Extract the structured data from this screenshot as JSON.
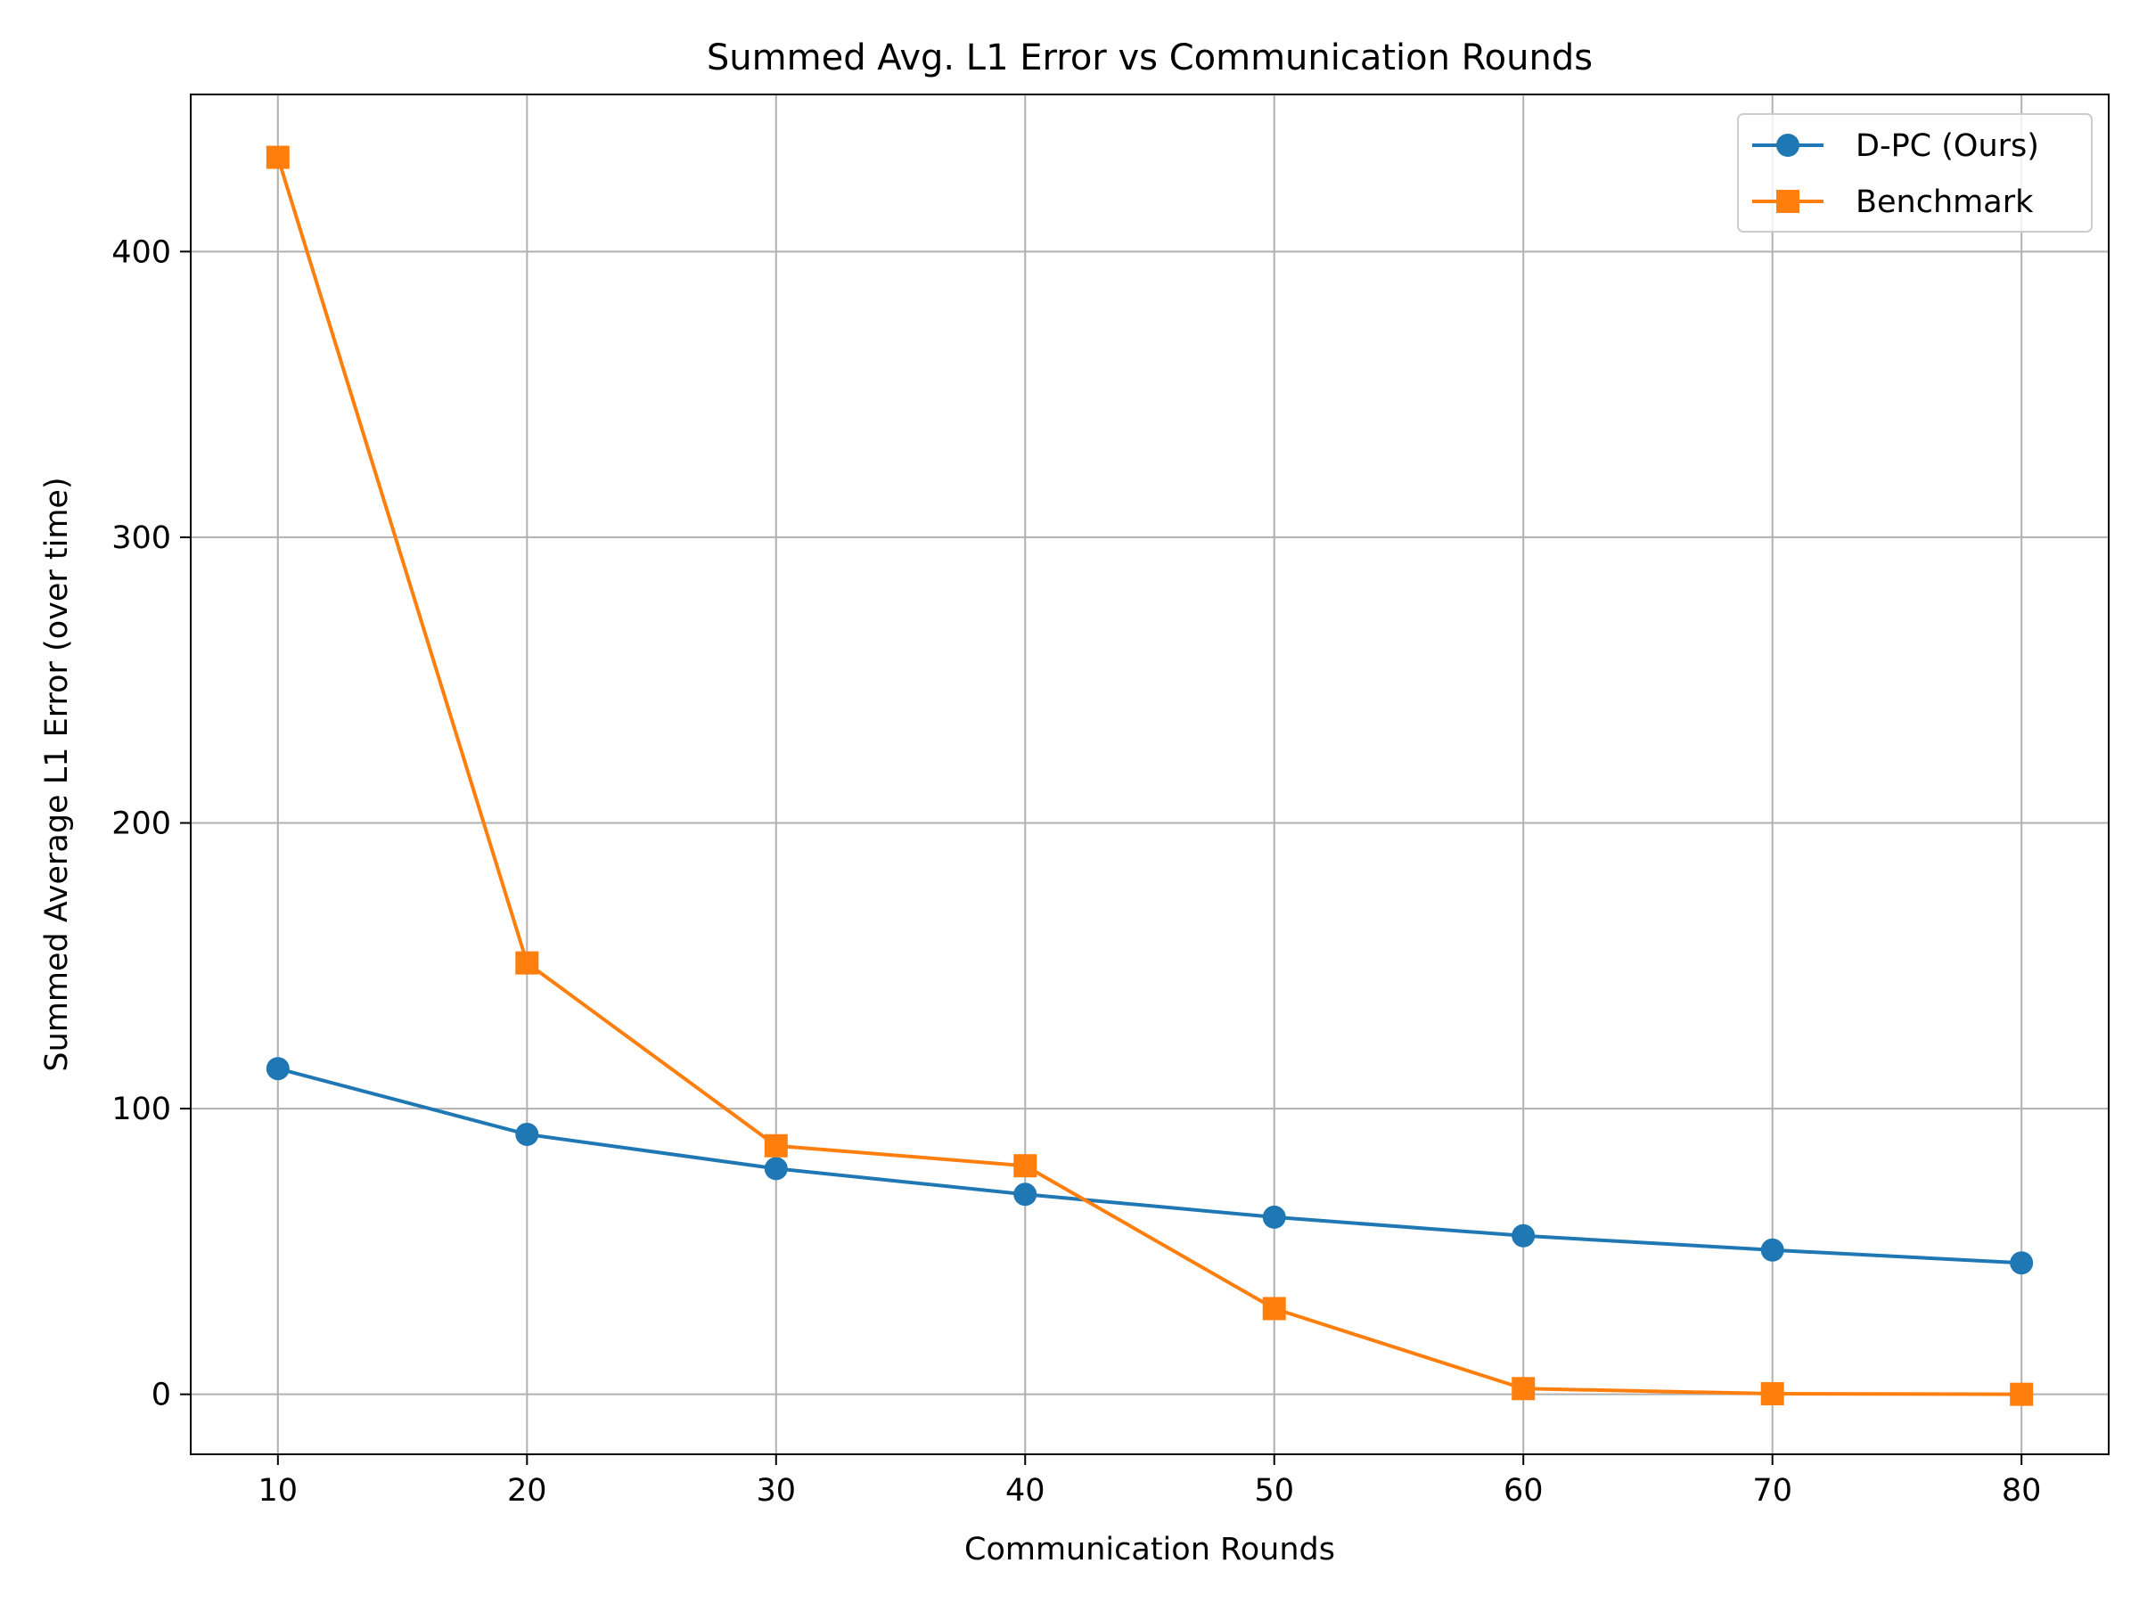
{
  "chart_data": {
    "type": "line",
    "title": "Summed Avg. L1 Error vs Communication Rounds",
    "xlabel": "Communication Rounds",
    "ylabel": "Summed Average L1 Error (over time)",
    "x": [
      10,
      20,
      30,
      40,
      50,
      60,
      70,
      80
    ],
    "xlim": [
      6.5,
      83.5
    ],
    "ylim": [
      -21,
      455
    ],
    "xticks": [
      10,
      20,
      30,
      40,
      50,
      60,
      70,
      80
    ],
    "yticks": [
      0,
      100,
      200,
      300,
      400
    ],
    "grid": true,
    "legend_position": "top-right",
    "series": [
      {
        "name": "D-PC (Ours)",
        "marker": "circle",
        "color": "#1f77b4",
        "values": [
          114,
          91,
          79,
          70,
          62,
          55.5,
          50.5,
          46
        ]
      },
      {
        "name": "Benchmark",
        "marker": "square",
        "color": "#ff7f0e",
        "values": [
          433,
          151,
          87,
          80,
          30,
          2,
          0.2,
          0
        ]
      }
    ]
  }
}
